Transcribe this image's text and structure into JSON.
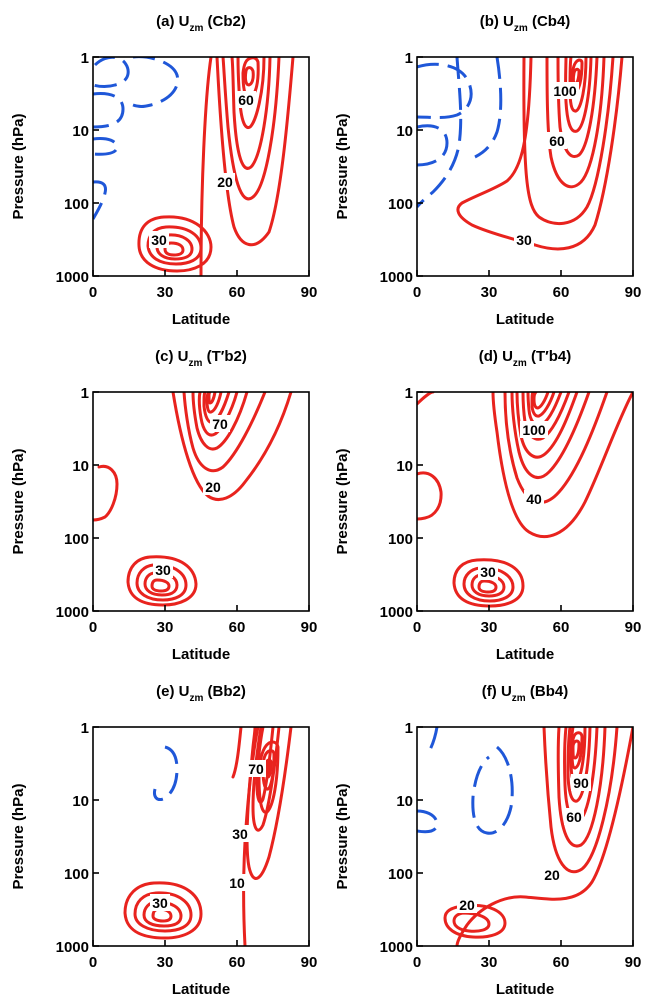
{
  "chart_data": [
    {
      "type": "contour",
      "title": "(a) Uzm (Cb2)",
      "title_parts": {
        "prefix": "(a) U",
        "sub": "zm",
        "suffix": " (Cb2)"
      },
      "xlabel": "Latitude",
      "ylabel": "Pressure (hPa)",
      "xlim": [
        0,
        90
      ],
      "ylim": [
        1000,
        1
      ],
      "yscale": "log",
      "xticks": [
        0,
        30,
        60,
        90
      ],
      "yticks": [
        1,
        10,
        100,
        1000
      ],
      "contour_labels": [
        {
          "text": "60",
          "lat": 63,
          "p": 5
        },
        {
          "text": "20",
          "lat": 58,
          "p": 30
        },
        {
          "text": "30",
          "lat": 31,
          "p": 350
        }
      ],
      "positive_maxima": [
        {
          "lat": 64,
          "p": 3.5
        },
        {
          "lat": 31,
          "p": 350
        }
      ],
      "negative_regions": [
        {
          "lat": 5,
          "p": 3
        },
        {
          "lat": 3,
          "p": 80
        }
      ]
    },
    {
      "type": "contour",
      "title": "(b) Uzm (Cb4)",
      "title_parts": {
        "prefix": "(b) U",
        "sub": "zm",
        "suffix": " (Cb4)"
      },
      "xlabel": "Latitude",
      "ylabel": "Pressure (hPa)",
      "xlim": [
        0,
        90
      ],
      "ylim": [
        1000,
        1
      ],
      "yscale": "log",
      "xticks": [
        0,
        30,
        60,
        90
      ],
      "yticks": [
        1,
        10,
        100,
        1000
      ],
      "contour_labels": [
        {
          "text": "100",
          "lat": 63,
          "p": 3
        },
        {
          "text": "60",
          "lat": 61,
          "p": 14
        },
        {
          "text": "30",
          "lat": 40,
          "p": 230
        }
      ],
      "positive_maxima": [
        {
          "lat": 63,
          "p": 3
        }
      ],
      "negative_regions": [
        {
          "lat": 12,
          "p": 10
        }
      ]
    },
    {
      "type": "contour",
      "title": "(c) Uzm (T′b2)",
      "title_parts": {
        "prefix": "(c) U",
        "sub": "zm",
        "suffix": " (T′b2)"
      },
      "xlabel": "Latitude",
      "ylabel": "Pressure (hPa)",
      "xlim": [
        0,
        90
      ],
      "ylim": [
        1000,
        1
      ],
      "yscale": "log",
      "xticks": [
        0,
        30,
        60,
        90
      ],
      "yticks": [
        1,
        10,
        100,
        1000
      ],
      "contour_labels": [
        {
          "text": "70",
          "lat": 49,
          "p": 3.5
        },
        {
          "text": "20",
          "lat": 48,
          "p": 20
        },
        {
          "text": "30",
          "lat": 28,
          "p": 320
        }
      ],
      "positive_maxima": [
        {
          "lat": 46,
          "p": 3
        },
        {
          "lat": 28,
          "p": 320
        },
        {
          "lat": 3,
          "p": 18
        }
      ],
      "negative_regions": []
    },
    {
      "type": "contour",
      "title": "(d) Uzm (T′b4)",
      "title_parts": {
        "prefix": "(d) U",
        "sub": "zm",
        "suffix": " (T′b4)"
      },
      "xlabel": "Latitude",
      "ylabel": "Pressure (hPa)",
      "xlim": [
        0,
        90
      ],
      "ylim": [
        1000,
        1
      ],
      "yscale": "log",
      "xticks": [
        0,
        30,
        60,
        90
      ],
      "yticks": [
        1,
        10,
        100,
        1000
      ],
      "contour_labels": [
        {
          "text": "100",
          "lat": 44,
          "p": 5
        },
        {
          "text": "40",
          "lat": 46,
          "p": 20
        },
        {
          "text": "30",
          "lat": 30,
          "p": 330
        }
      ],
      "positive_maxima": [
        {
          "lat": 43,
          "p": 4
        },
        {
          "lat": 30,
          "p": 330
        },
        {
          "lat": 2,
          "p": 20
        }
      ],
      "negative_regions": []
    },
    {
      "type": "contour",
      "title": "(e) Uzm (Bb2)",
      "title_parts": {
        "prefix": "(e) U",
        "sub": "zm",
        "suffix": " (Bb2)"
      },
      "xlabel": "Latitude",
      "ylabel": "Pressure (hPa)",
      "xlim": [
        0,
        90
      ],
      "ylim": [
        1000,
        1
      ],
      "yscale": "log",
      "xticks": [
        0,
        30,
        60,
        90
      ],
      "yticks": [
        1,
        10,
        100,
        1000
      ],
      "contour_labels": [
        {
          "text": "70",
          "lat": 69,
          "p": 5
        },
        {
          "text": "30",
          "lat": 66,
          "p": 20
        },
        {
          "text": "10",
          "lat": 60,
          "p": 80
        },
        {
          "text": "30",
          "lat": 22,
          "p": 320
        }
      ],
      "positive_maxima": [
        {
          "lat": 70,
          "p": 4
        },
        {
          "lat": 22,
          "p": 340
        }
      ],
      "negative_regions": [
        {
          "lat": 26,
          "p": 5
        }
      ]
    },
    {
      "type": "contour",
      "title": "(f) Uzm (Bb4)",
      "title_parts": {
        "prefix": "(f) U",
        "sub": "zm",
        "suffix": " (Bb4)"
      },
      "xlabel": "Latitude",
      "ylabel": "Pressure (hPa)",
      "xlim": [
        0,
        90
      ],
      "ylim": [
        1000,
        1
      ],
      "yscale": "log",
      "xticks": [
        0,
        30,
        60,
        90
      ],
      "yticks": [
        1,
        10,
        100,
        1000
      ],
      "contour_labels": [
        {
          "text": "90",
          "lat": 66,
          "p": 7
        },
        {
          "text": "60",
          "lat": 64,
          "p": 17
        },
        {
          "text": "20",
          "lat": 60,
          "p": 70
        },
        {
          "text": "20",
          "lat": 20,
          "p": 300
        }
      ],
      "positive_maxima": [
        {
          "lat": 66,
          "p": 5
        },
        {
          "lat": 22,
          "p": 300
        }
      ],
      "negative_regions": [
        {
          "lat": 30,
          "p": 8
        },
        {
          "lat": 3,
          "p": 15
        }
      ]
    }
  ]
}
